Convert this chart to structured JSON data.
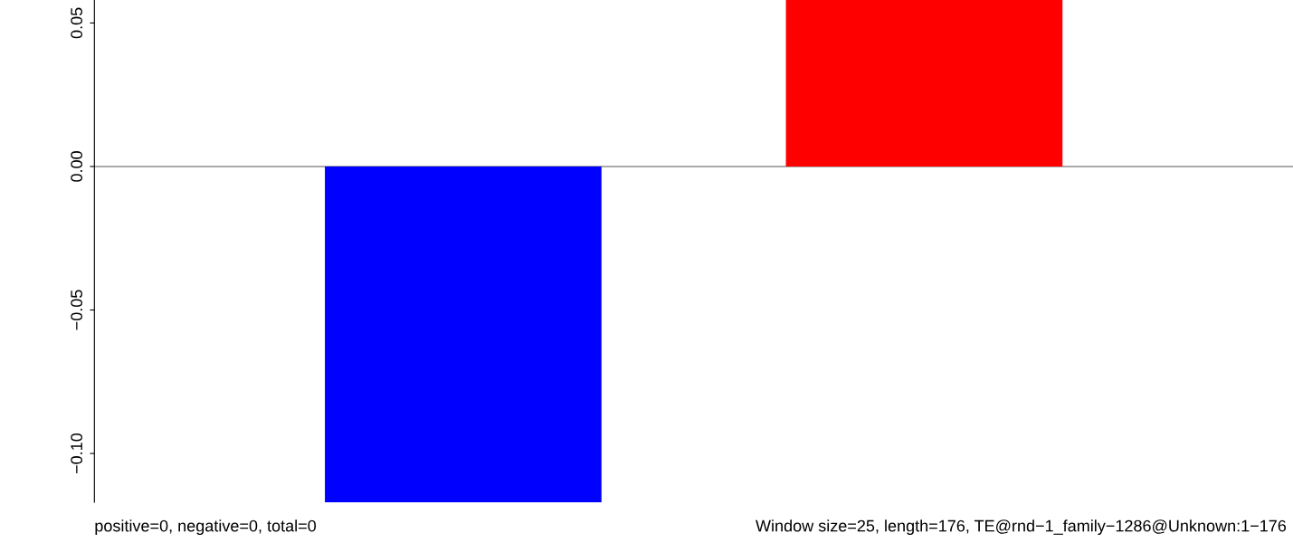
{
  "chart_data": {
    "type": "bar",
    "categories": [
      null,
      null
    ],
    "values": [
      -0.117,
      0.058
    ],
    "colors": [
      "#0000ff",
      "#ff0000"
    ],
    "ylim": [
      -0.117,
      0.058
    ],
    "yticks": [
      {
        "value": 0.05,
        "label": "0.05"
      },
      {
        "value": 0,
        "label": "0.00"
      },
      {
        "value": -0.05,
        "label": "−0.05"
      },
      {
        "value": -0.1,
        "label": "−0.10"
      }
    ],
    "ref_lines": [
      {
        "axis": "y",
        "value": 0,
        "color": "#555555"
      }
    ],
    "annotations": [
      "positive=0, negative=0, total=0",
      "Window size=25, length=176, TE@rnd−1_family−1286@Unknown:1−176"
    ],
    "grid": false,
    "legend": false
  }
}
